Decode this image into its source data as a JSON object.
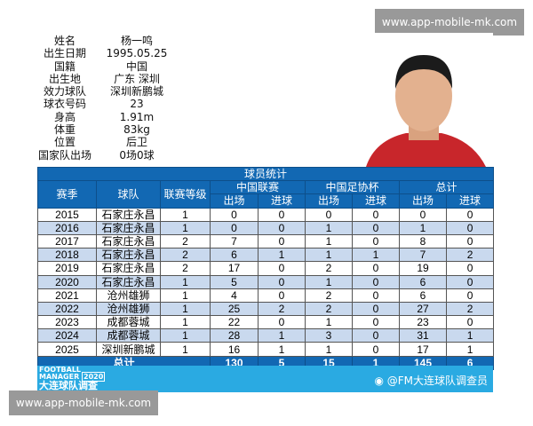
{
  "profile": [
    {
      "label": "姓名",
      "value": "杨一鸣"
    },
    {
      "label": "出生日期",
      "value": "1995.05.25"
    },
    {
      "label": "国籍",
      "value": "中国"
    },
    {
      "label": "出生地",
      "value": "广东 深圳"
    },
    {
      "label": "效力球队",
      "value": "深圳新鹏城"
    },
    {
      "label": "球衣号码",
      "value": "23"
    },
    {
      "label": "身高",
      "value": "1.91m"
    },
    {
      "label": "体重",
      "value": "83kg"
    },
    {
      "label": "位置",
      "value": "后卫"
    },
    {
      "label": "国家队出场",
      "value": "0场0球"
    }
  ],
  "table": {
    "title": "球员统计",
    "h": {
      "season": "赛季",
      "team": "球队",
      "level": "联赛等级",
      "league": "中国联赛",
      "cup": "中国足协杯",
      "total": "总计",
      "apps": "出场",
      "goals": "进球"
    },
    "rows": [
      [
        "2015",
        "石家庄永昌",
        "1",
        "0",
        "0",
        "0",
        "0",
        "0",
        "0"
      ],
      [
        "2016",
        "石家庄永昌",
        "1",
        "0",
        "0",
        "1",
        "0",
        "1",
        "0"
      ],
      [
        "2017",
        "石家庄永昌",
        "2",
        "7",
        "0",
        "1",
        "0",
        "8",
        "0"
      ],
      [
        "2018",
        "石家庄永昌",
        "2",
        "6",
        "1",
        "1",
        "1",
        "7",
        "2"
      ],
      [
        "2019",
        "石家庄永昌",
        "2",
        "17",
        "0",
        "2",
        "0",
        "19",
        "0"
      ],
      [
        "2020",
        "石家庄永昌",
        "1",
        "5",
        "0",
        "1",
        "0",
        "6",
        "0"
      ],
      [
        "2021",
        "沧州雄狮",
        "1",
        "4",
        "0",
        "2",
        "0",
        "6",
        "0"
      ],
      [
        "2022",
        "沧州雄狮",
        "1",
        "25",
        "2",
        "2",
        "0",
        "27",
        "2"
      ],
      [
        "2023",
        "成都蓉城",
        "1",
        "22",
        "0",
        "1",
        "0",
        "23",
        "0"
      ],
      [
        "2024",
        "成都蓉城",
        "1",
        "28",
        "1",
        "3",
        "0",
        "31",
        "1"
      ],
      [
        "2025",
        "深圳新鹏城",
        "1",
        "16",
        "1",
        "1",
        "0",
        "17",
        "1"
      ]
    ],
    "total": {
      "label": "总计",
      "values": [
        "130",
        "5",
        "15",
        "1",
        "145",
        "6"
      ]
    }
  },
  "footer": {
    "logo_line1": "FOOTBALL",
    "logo_line2": "MANAGER",
    "logo_year": "2020",
    "logo_line3": "大连球队调查",
    "weibo": "@FM大连球队调查员"
  },
  "watermark": "www.app-mobile-mk.com",
  "colors": {
    "header": "#1268b3",
    "alt_row": "#c9d9ee",
    "footer": "#2aaae2"
  }
}
